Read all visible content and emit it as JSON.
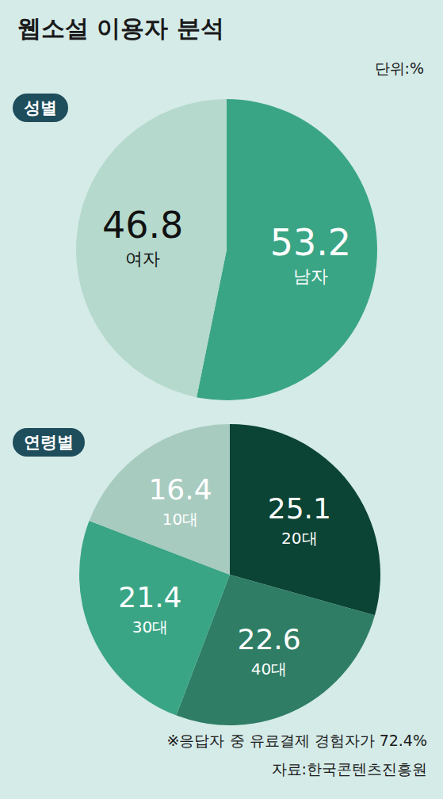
{
  "title": "웹소설 이용자 분석",
  "unit_label": "단위:%",
  "note": "※응답자 중 유료결제 경험자가 72.4%",
  "source": "자료:한국콘텐츠진흥원",
  "chart_data": [
    {
      "type": "pie",
      "title": "성별",
      "categories": [
        "남자",
        "여자"
      ],
      "values": [
        53.2,
        46.8
      ],
      "colors": [
        "#3aa585",
        "#b5d9cc"
      ],
      "data_labels": true
    },
    {
      "type": "pie",
      "title": "연령별",
      "categories": [
        "20대",
        "40대",
        "30대",
        "10대"
      ],
      "values": [
        25.1,
        22.6,
        21.4,
        16.4
      ],
      "colors": [
        "#0b4434",
        "#2e7d64",
        "#3aa585",
        "#a8cbbf"
      ],
      "data_labels": true
    }
  ]
}
